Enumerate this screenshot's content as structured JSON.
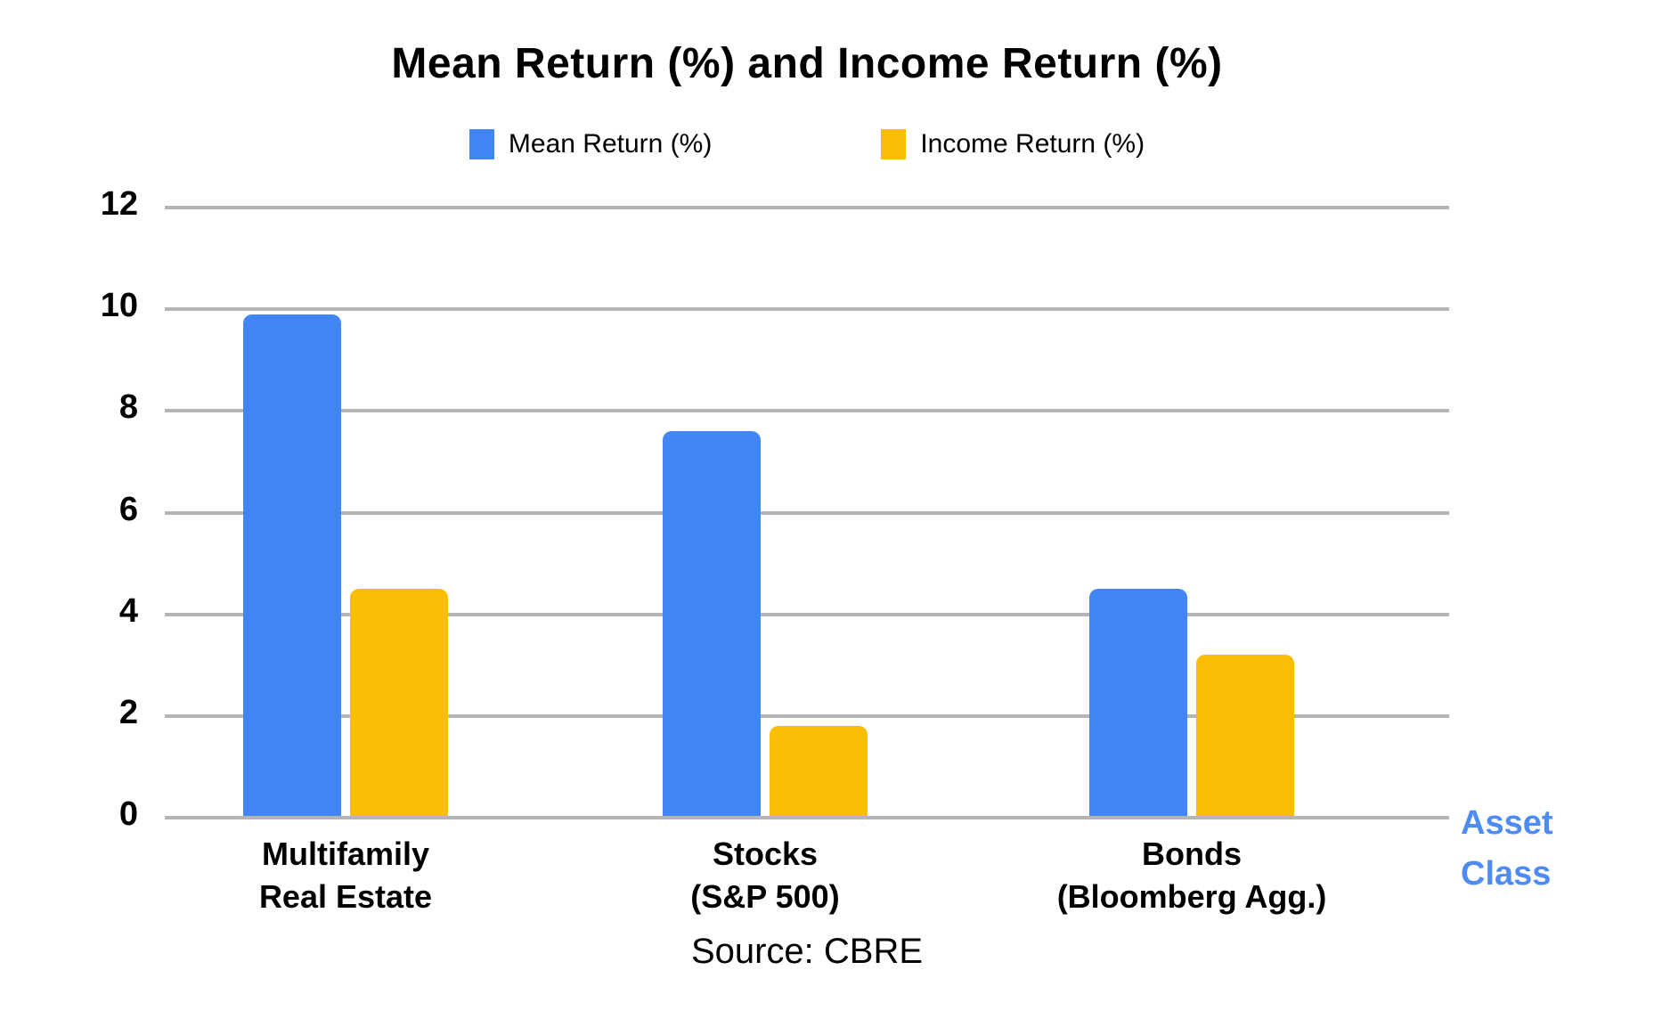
{
  "chart_data": {
    "type": "bar",
    "title": "Mean Return (%) and Income Return (%)",
    "categories": [
      "Multifamily\nReal Estate",
      "Stocks\n(S&P 500)",
      "Bonds\n(Bloomberg Agg.)"
    ],
    "series": [
      {
        "name": "Mean Return (%)",
        "color": "#4285F4",
        "values": [
          9.9,
          7.6,
          4.5
        ]
      },
      {
        "name": "Income Return (%)",
        "color": "#FBBC04",
        "values": [
          4.5,
          1.8,
          3.2
        ]
      }
    ],
    "xlabel": "Asset\nClass",
    "ylabel": "",
    "ylim": [
      0,
      12
    ],
    "yticks": [
      12,
      10,
      8,
      6,
      4,
      2,
      0
    ],
    "grid": true,
    "legend_position": "top",
    "source": "Source: CBRE",
    "colors": {
      "grid": "#B5B5B5",
      "axis_label_text": "#4E8CF4",
      "title_text": "#000000"
    }
  }
}
